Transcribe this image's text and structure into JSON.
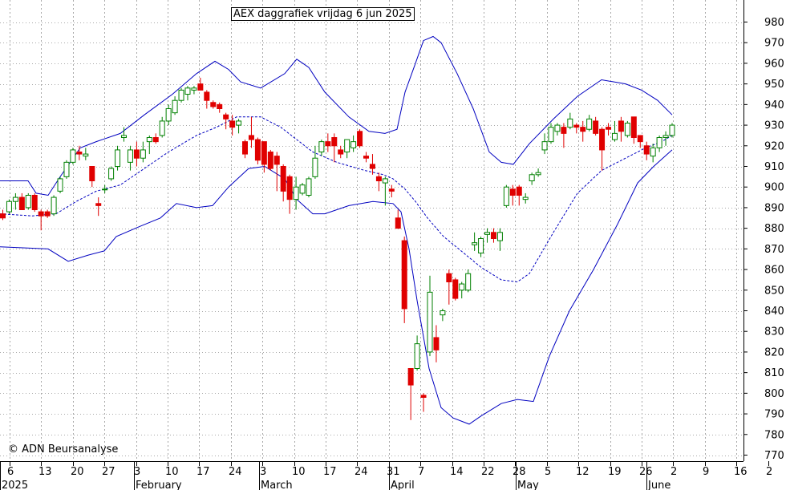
{
  "title": "AEX daggrafiek vrijdag 6 jun 2025",
  "copyright": "© ADN Beursanalyse",
  "colors": {
    "up": "#008000",
    "down": "#e00000",
    "band": "#0000c0",
    "grid": "#a8a8a8"
  },
  "chart_data": {
    "type": "candlestick",
    "title": "AEX daggrafiek vrijdag 6 jun 2025",
    "ylim": [
      765,
      990
    ],
    "y_ticks": [
      770,
      780,
      790,
      800,
      810,
      820,
      830,
      840,
      850,
      860,
      870,
      880,
      890,
      900,
      910,
      920,
      930,
      940,
      950,
      960,
      970,
      980
    ],
    "x_ticks": [
      "6",
      "13",
      "20",
      "27",
      "3",
      "10",
      "17",
      "24",
      "3",
      "10",
      "17",
      "24",
      "31",
      "7",
      "14",
      "22",
      "28",
      "5",
      "12",
      "19",
      "26",
      "2",
      "9",
      "16",
      "2"
    ],
    "months": [
      "2025",
      "February",
      "March",
      "April",
      "May",
      "June"
    ],
    "grid": true,
    "candles": [
      {
        "o": 887,
        "h": 889,
        "l": 884,
        "c": 885
      },
      {
        "o": 888,
        "h": 894,
        "l": 887,
        "c": 893
      },
      {
        "o": 893,
        "h": 897,
        "l": 889,
        "c": 895
      },
      {
        "o": 895,
        "h": 897,
        "l": 889,
        "c": 889
      },
      {
        "o": 890,
        "h": 897,
        "l": 889,
        "c": 896
      },
      {
        "o": 896,
        "h": 897,
        "l": 888,
        "c": 889
      },
      {
        "o": 888,
        "h": 889,
        "l": 879,
        "c": 886
      },
      {
        "o": 888,
        "h": 889,
        "l": 885,
        "c": 886
      },
      {
        "o": 887,
        "h": 896,
        "l": 886,
        "c": 895
      },
      {
        "o": 898,
        "h": 905,
        "l": 897,
        "c": 904
      },
      {
        "o": 905,
        "h": 913,
        "l": 904,
        "c": 912
      },
      {
        "o": 912,
        "h": 919,
        "l": 911,
        "c": 918
      },
      {
        "o": 917,
        "h": 920,
        "l": 913,
        "c": 916
      },
      {
        "o": 915,
        "h": 919,
        "l": 913,
        "c": 916
      },
      {
        "o": 910,
        "h": 910,
        "l": 900,
        "c": 903
      },
      {
        "o": 892,
        "h": 895,
        "l": 886,
        "c": 891
      },
      {
        "o": 899,
        "h": 901,
        "l": 897,
        "c": 899
      },
      {
        "o": 904,
        "h": 910,
        "l": 903,
        "c": 909
      },
      {
        "o": 910,
        "h": 920,
        "l": 908,
        "c": 918
      },
      {
        "o": 924,
        "h": 929,
        "l": 922,
        "c": 925
      },
      {
        "o": 912,
        "h": 920,
        "l": 908,
        "c": 918
      },
      {
        "o": 918,
        "h": 922,
        "l": 910,
        "c": 914
      },
      {
        "o": 914,
        "h": 922,
        "l": 912,
        "c": 918
      },
      {
        "o": 922,
        "h": 925,
        "l": 916,
        "c": 924
      },
      {
        "o": 924,
        "h": 926,
        "l": 921,
        "c": 922
      },
      {
        "o": 925,
        "h": 934,
        "l": 924,
        "c": 932
      },
      {
        "o": 932,
        "h": 940,
        "l": 930,
        "c": 938
      },
      {
        "o": 936,
        "h": 944,
        "l": 935,
        "c": 942
      },
      {
        "o": 942,
        "h": 948,
        "l": 941,
        "c": 947
      },
      {
        "o": 945,
        "h": 949,
        "l": 942,
        "c": 948
      },
      {
        "o": 947,
        "h": 949,
        "l": 945,
        "c": 948
      },
      {
        "o": 950,
        "h": 953,
        "l": 947,
        "c": 947
      },
      {
        "o": 946,
        "h": 947,
        "l": 938,
        "c": 942
      },
      {
        "o": 941,
        "h": 942,
        "l": 938,
        "c": 939
      },
      {
        "o": 940,
        "h": 941,
        "l": 936,
        "c": 938
      },
      {
        "o": 935,
        "h": 936,
        "l": 928,
        "c": 933
      },
      {
        "o": 932,
        "h": 935,
        "l": 925,
        "c": 929
      },
      {
        "o": 930,
        "h": 933,
        "l": 926,
        "c": 932
      },
      {
        "o": 922,
        "h": 923,
        "l": 914,
        "c": 916
      },
      {
        "o": 925,
        "h": 934,
        "l": 919,
        "c": 923
      },
      {
        "o": 923,
        "h": 924,
        "l": 911,
        "c": 913
      },
      {
        "o": 922,
        "h": 922,
        "l": 907,
        "c": 911
      },
      {
        "o": 917,
        "h": 918,
        "l": 908,
        "c": 909
      },
      {
        "o": 915,
        "h": 917,
        "l": 898,
        "c": 911
      },
      {
        "o": 910,
        "h": 911,
        "l": 893,
        "c": 898
      },
      {
        "o": 905,
        "h": 906,
        "l": 887,
        "c": 894
      },
      {
        "o": 894,
        "h": 905,
        "l": 889,
        "c": 900
      },
      {
        "o": 897,
        "h": 902,
        "l": 896,
        "c": 901
      },
      {
        "o": 896,
        "h": 905,
        "l": 895,
        "c": 904
      },
      {
        "o": 905,
        "h": 920,
        "l": 904,
        "c": 914
      },
      {
        "o": 917,
        "h": 923,
        "l": 915,
        "c": 922
      },
      {
        "o": 922,
        "h": 926,
        "l": 917,
        "c": 920
      },
      {
        "o": 924,
        "h": 926,
        "l": 912,
        "c": 920
      },
      {
        "o": 918,
        "h": 920,
        "l": 914,
        "c": 916
      },
      {
        "o": 917,
        "h": 923,
        "l": 914,
        "c": 923
      },
      {
        "o": 919,
        "h": 925,
        "l": 917,
        "c": 922
      },
      {
        "o": 927,
        "h": 928,
        "l": 919,
        "c": 920
      },
      {
        "o": 915,
        "h": 917,
        "l": 912,
        "c": 914
      },
      {
        "o": 911,
        "h": 916,
        "l": 906,
        "c": 909
      },
      {
        "o": 905,
        "h": 907,
        "l": 898,
        "c": 903
      },
      {
        "o": 902,
        "h": 905,
        "l": 891,
        "c": 904
      },
      {
        "o": 899,
        "h": 901,
        "l": 895,
        "c": 898
      },
      {
        "o": 885,
        "h": 889,
        "l": 880,
        "c": 880
      },
      {
        "o": 874,
        "h": 876,
        "l": 834,
        "c": 841
      },
      {
        "o": 812,
        "h": 812,
        "l": 787,
        "c": 804
      },
      {
        "o": 812,
        "h": 828,
        "l": 811,
        "c": 824
      },
      {
        "o": 799,
        "h": 800,
        "l": 791,
        "c": 798
      },
      {
        "o": 820,
        "h": 857,
        "l": 818,
        "c": 849
      },
      {
        "o": 827,
        "h": 833,
        "l": 815,
        "c": 821
      },
      {
        "o": 838,
        "h": 841,
        "l": 835,
        "c": 840
      },
      {
        "o": 858,
        "h": 860,
        "l": 843,
        "c": 854
      },
      {
        "o": 855,
        "h": 856,
        "l": 845,
        "c": 846
      },
      {
        "o": 850,
        "h": 854,
        "l": 846,
        "c": 853
      },
      {
        "o": 850,
        "h": 860,
        "l": 849,
        "c": 858
      },
      {
        "o": 872,
        "h": 878,
        "l": 869,
        "c": 873
      },
      {
        "o": 868,
        "h": 876,
        "l": 866,
        "c": 875
      },
      {
        "o": 877,
        "h": 880,
        "l": 873,
        "c": 878
      },
      {
        "o": 878,
        "h": 880,
        "l": 873,
        "c": 875
      },
      {
        "o": 874,
        "h": 880,
        "l": 869,
        "c": 878
      },
      {
        "o": 891,
        "h": 901,
        "l": 890,
        "c": 900
      },
      {
        "o": 899,
        "h": 901,
        "l": 891,
        "c": 896
      },
      {
        "o": 900,
        "h": 901,
        "l": 891,
        "c": 896
      },
      {
        "o": 894,
        "h": 897,
        "l": 892,
        "c": 895
      },
      {
        "o": 903,
        "h": 907,
        "l": 901,
        "c": 906
      },
      {
        "o": 906,
        "h": 909,
        "l": 905,
        "c": 907
      },
      {
        "o": 918,
        "h": 926,
        "l": 916,
        "c": 922
      },
      {
        "o": 922,
        "h": 931,
        "l": 921,
        "c": 929
      },
      {
        "o": 927,
        "h": 931,
        "l": 925,
        "c": 930
      },
      {
        "o": 929,
        "h": 931,
        "l": 919,
        "c": 926
      },
      {
        "o": 929,
        "h": 936,
        "l": 928,
        "c": 933
      },
      {
        "o": 930,
        "h": 931,
        "l": 926,
        "c": 929
      },
      {
        "o": 929,
        "h": 932,
        "l": 922,
        "c": 927
      },
      {
        "o": 928,
        "h": 935,
        "l": 927,
        "c": 933
      },
      {
        "o": 932,
        "h": 934,
        "l": 925,
        "c": 926
      },
      {
        "o": 928,
        "h": 929,
        "l": 908,
        "c": 918
      },
      {
        "o": 929,
        "h": 931,
        "l": 925,
        "c": 928
      },
      {
        "o": 923,
        "h": 932,
        "l": 922,
        "c": 926
      },
      {
        "o": 932,
        "h": 934,
        "l": 922,
        "c": 927
      },
      {
        "o": 925,
        "h": 932,
        "l": 924,
        "c": 931
      },
      {
        "o": 934,
        "h": 934,
        "l": 921,
        "c": 924
      },
      {
        "o": 925,
        "h": 925,
        "l": 919,
        "c": 922
      },
      {
        "o": 920,
        "h": 922,
        "l": 913,
        "c": 916
      },
      {
        "o": 915,
        "h": 921,
        "l": 912,
        "c": 919
      },
      {
        "o": 919,
        "h": 925,
        "l": 917,
        "c": 924
      },
      {
        "o": 924,
        "h": 927,
        "l": 920,
        "c": 925
      },
      {
        "o": 925,
        "h": 931,
        "l": 924,
        "c": 930
      }
    ],
    "bollinger": {
      "upper": [
        [
          0,
          903
        ],
        [
          35,
          903
        ],
        [
          45,
          897
        ],
        [
          60,
          896
        ],
        [
          75,
          905
        ],
        [
          100,
          919
        ],
        [
          120,
          922
        ],
        [
          150,
          926
        ],
        [
          180,
          935
        ],
        [
          215,
          945
        ],
        [
          245,
          955
        ],
        [
          268,
          961
        ],
        [
          285,
          957
        ],
        [
          300,
          951
        ],
        [
          325,
          948
        ],
        [
          355,
          955
        ],
        [
          370,
          962
        ],
        [
          385,
          958
        ],
        [
          405,
          946
        ],
        [
          435,
          934
        ],
        [
          460,
          927
        ],
        [
          480,
          926
        ],
        [
          495,
          928
        ],
        [
          505,
          946
        ],
        [
          518,
          960
        ],
        [
          528,
          971
        ],
        [
          540,
          973
        ],
        [
          550,
          970
        ],
        [
          570,
          955
        ],
        [
          590,
          938
        ],
        [
          610,
          917
        ],
        [
          625,
          912
        ],
        [
          640,
          911
        ],
        [
          660,
          921
        ],
        [
          690,
          933
        ],
        [
          720,
          944
        ],
        [
          750,
          952
        ],
        [
          780,
          950
        ],
        [
          800,
          947
        ],
        [
          820,
          942
        ],
        [
          838,
          935
        ]
      ],
      "middle": [
        [
          0,
          887
        ],
        [
          40,
          886
        ],
        [
          70,
          887
        ],
        [
          95,
          893
        ],
        [
          120,
          898
        ],
        [
          150,
          901
        ],
        [
          180,
          909
        ],
        [
          210,
          917
        ],
        [
          245,
          925
        ],
        [
          270,
          929
        ],
        [
          295,
          934
        ],
        [
          325,
          934
        ],
        [
          350,
          929
        ],
        [
          390,
          917
        ],
        [
          420,
          912
        ],
        [
          455,
          908
        ],
        [
          478,
          906
        ],
        [
          490,
          904
        ],
        [
          505,
          899
        ],
        [
          518,
          893
        ],
        [
          533,
          885
        ],
        [
          553,
          876
        ],
        [
          575,
          869
        ],
        [
          600,
          861
        ],
        [
          625,
          855
        ],
        [
          645,
          854
        ],
        [
          660,
          858
        ],
        [
          690,
          878
        ],
        [
          720,
          897
        ],
        [
          750,
          908
        ],
        [
          780,
          914
        ],
        [
          805,
          919
        ],
        [
          825,
          922
        ],
        [
          838,
          925
        ]
      ],
      "lower": [
        [
          0,
          871
        ],
        [
          60,
          870
        ],
        [
          85,
          864
        ],
        [
          110,
          867
        ],
        [
          130,
          869
        ],
        [
          145,
          876
        ],
        [
          175,
          881
        ],
        [
          200,
          885
        ],
        [
          220,
          892
        ],
        [
          245,
          890
        ],
        [
          265,
          891
        ],
        [
          285,
          900
        ],
        [
          310,
          909
        ],
        [
          330,
          910
        ],
        [
          355,
          904
        ],
        [
          370,
          894
        ],
        [
          390,
          887
        ],
        [
          405,
          887
        ],
        [
          435,
          891
        ],
        [
          465,
          893
        ],
        [
          490,
          892
        ],
        [
          500,
          888
        ],
        [
          510,
          870
        ],
        [
          520,
          845
        ],
        [
          535,
          812
        ],
        [
          550,
          793
        ],
        [
          565,
          788
        ],
        [
          585,
          785
        ],
        [
          600,
          789
        ],
        [
          625,
          795
        ],
        [
          645,
          797
        ],
        [
          665,
          796
        ],
        [
          685,
          818
        ],
        [
          710,
          840
        ],
        [
          740,
          860
        ],
        [
          770,
          882
        ],
        [
          795,
          902
        ],
        [
          815,
          910
        ],
        [
          838,
          918
        ]
      ]
    }
  }
}
